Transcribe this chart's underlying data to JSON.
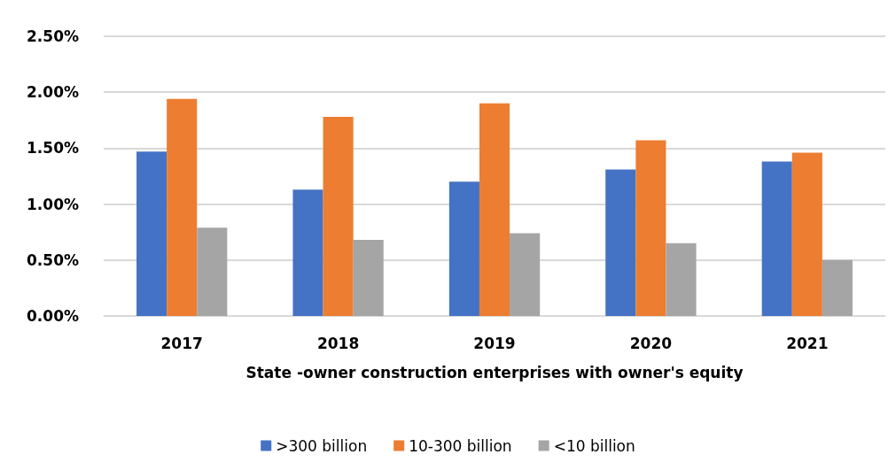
{
  "chart_data": {
    "type": "bar",
    "xlabel": "State -owner construction enterprises with owner's equity",
    "categories": [
      "2017",
      "2018",
      "2019",
      "2020",
      "2021"
    ],
    "series": [
      {
        "name": ">300 billion",
        "color": "#4472c4",
        "values": [
          1.47,
          1.13,
          1.2,
          1.31,
          1.38
        ]
      },
      {
        "name": "10-300 billion",
        "color": "#ed7d31",
        "values": [
          1.94,
          1.78,
          1.9,
          1.57,
          1.46
        ]
      },
      {
        "name": "<10 billion",
        "color": "#a5a5a5",
        "values": [
          0.79,
          0.68,
          0.74,
          0.65,
          0.5
        ]
      }
    ],
    "ylim": [
      0,
      2.5
    ],
    "yticks": [
      {
        "value": 0,
        "label": "0.00%"
      },
      {
        "value": 0.5,
        "label": "0.50%"
      },
      {
        "value": 1,
        "label": "1.00%"
      },
      {
        "value": 1.5,
        "label": "1.50%"
      },
      {
        "value": 2,
        "label": "2.00%"
      },
      {
        "value": 2.5,
        "label": "2.50%"
      }
    ],
    "grid": "y",
    "legend": "bottom"
  }
}
